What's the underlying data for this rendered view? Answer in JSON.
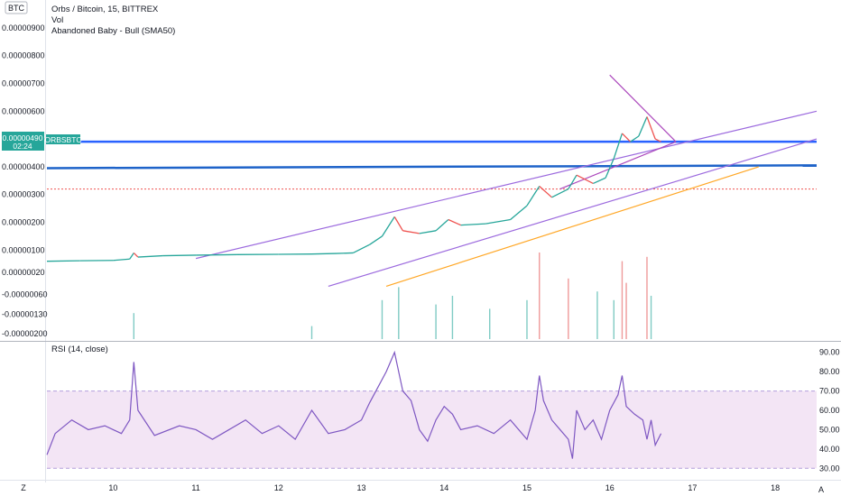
{
  "chart_data": [
    {
      "type": "candlestick",
      "title": "Orbs / Bitcoin, 15, BITTREX",
      "currency_badge": "BTC",
      "legend": [
        "Vol",
        "Abandoned Baby - Bull (SMA50)"
      ],
      "y_tick_labels": [
        "0.00000900",
        "0.00000800",
        "0.00000700",
        "0.00000600",
        "0.00000500",
        "0.00000400",
        "0.00000300",
        "0.00000200",
        "0.00000100",
        "0.00000020",
        "-0.00000060",
        "-0.00000130",
        "-0.00000200"
      ],
      "y_tick_values": [
        9e-06,
        8e-06,
        7e-06,
        6e-06,
        5e-06,
        4e-06,
        3e-06,
        2e-06,
        1e-06,
        2e-07,
        -6e-07,
        -1.3e-06,
        -2e-06
      ],
      "last_price": {
        "value": "0.00000490",
        "countdown": "02:24",
        "symbol": "ORBSBTC"
      },
      "x_tick_labels": [
        "10",
        "11",
        "12",
        "13",
        "14",
        "15",
        "16",
        "17",
        "18"
      ],
      "x_tick_values": [
        10,
        11,
        12,
        13,
        14,
        15,
        16,
        17,
        18
      ],
      "xlim": [
        9.2,
        18.5
      ],
      "ylim": [
        -2.2e-06,
        1e-05
      ],
      "price_path": [
        [
          9.2,
          6e-07
        ],
        [
          9.6,
          6.2e-07
        ],
        [
          10.0,
          6.3e-07
        ],
        [
          10.2,
          6.8e-07
        ],
        [
          10.25,
          9e-07
        ],
        [
          10.3,
          7.5e-07
        ],
        [
          10.6,
          8e-07
        ],
        [
          11.0,
          8.2e-07
        ],
        [
          11.5,
          8.4e-07
        ],
        [
          12.0,
          8.5e-07
        ],
        [
          12.4,
          8.6e-07
        ],
        [
          12.7,
          8.8e-07
        ],
        [
          12.9,
          9e-07
        ],
        [
          13.1,
          1.2e-06
        ],
        [
          13.25,
          1.5e-06
        ],
        [
          13.4,
          2.2e-06
        ],
        [
          13.5,
          1.7e-06
        ],
        [
          13.7,
          1.6e-06
        ],
        [
          13.9,
          1.7e-06
        ],
        [
          14.05,
          2.1e-06
        ],
        [
          14.2,
          1.9e-06
        ],
        [
          14.5,
          1.95e-06
        ],
        [
          14.8,
          2.1e-06
        ],
        [
          15.0,
          2.6e-06
        ],
        [
          15.15,
          3.3e-06
        ],
        [
          15.3,
          2.9e-06
        ],
        [
          15.5,
          3.2e-06
        ],
        [
          15.6,
          3.7e-06
        ],
        [
          15.8,
          3.4e-06
        ],
        [
          15.95,
          3.6e-06
        ],
        [
          16.05,
          4.3e-06
        ],
        [
          16.15,
          5.2e-06
        ],
        [
          16.25,
          4.9e-06
        ],
        [
          16.35,
          5.1e-06
        ],
        [
          16.45,
          5.8e-06
        ],
        [
          16.55,
          5e-06
        ],
        [
          16.62,
          4.9e-06
        ]
      ],
      "volume_bars": [
        [
          10.25,
          0.3
        ],
        [
          12.4,
          0.15
        ],
        [
          13.25,
          0.45
        ],
        [
          13.45,
          0.6
        ],
        [
          13.9,
          0.4
        ],
        [
          14.1,
          0.5
        ],
        [
          14.55,
          0.35
        ],
        [
          15.0,
          0.45
        ],
        [
          15.15,
          1.0
        ],
        [
          15.5,
          0.7
        ],
        [
          15.85,
          0.55
        ],
        [
          16.05,
          0.45
        ],
        [
          16.15,
          0.9
        ],
        [
          16.2,
          0.65
        ],
        [
          16.45,
          0.95
        ],
        [
          16.5,
          0.5
        ]
      ],
      "drawings": [
        {
          "name": "resistance-line-1",
          "color": "#2962ff",
          "points": [
            [
              9.2,
              4.9e-06
            ],
            [
              18.5,
              4.9e-06
            ]
          ]
        },
        {
          "name": "resistance-line-2",
          "color": "#1e63c9",
          "points": [
            [
              9.2,
              3.95e-06
            ],
            [
              18.5,
              4.05e-06
            ]
          ]
        },
        {
          "name": "dotted-level",
          "color": "#ef5350",
          "points": [
            [
              9.2,
              3.2e-06
            ],
            [
              18.5,
              3.2e-06
            ]
          ]
        },
        {
          "name": "channel-upper",
          "color": "#9c6ade",
          "points": [
            [
              11.0,
              7e-07
            ],
            [
              18.5,
              6e-06
            ]
          ]
        },
        {
          "name": "channel-lower",
          "color": "#9c6ade",
          "points": [
            [
              12.6,
              -3e-07
            ],
            [
              18.5,
              5e-06
            ]
          ]
        },
        {
          "name": "support-orange",
          "color": "#ffa726",
          "points": [
            [
              13.3,
              -3e-07
            ],
            [
              17.8,
              4e-06
            ]
          ]
        },
        {
          "name": "triangle-upper",
          "color": "#ab47bc",
          "points": [
            [
              16.0,
              7.3e-06
            ],
            [
              16.8,
              4.9e-06
            ]
          ]
        },
        {
          "name": "triangle-lower",
          "color": "#ab47bc",
          "points": [
            [
              15.4,
              3.2e-06
            ],
            [
              16.8,
              4.9e-06
            ]
          ]
        }
      ]
    },
    {
      "type": "line",
      "title": "RSI (14, close)",
      "y_tick_labels": [
        "90.00",
        "80.00",
        "70.00",
        "60.00",
        "50.00",
        "40.00",
        "30.00"
      ],
      "y_tick_values": [
        90,
        80,
        70,
        60,
        50,
        40,
        30
      ],
      "ylim": [
        25,
        95
      ],
      "band": [
        30,
        70
      ],
      "series": [
        {
          "values": [
            [
              9.2,
              37
            ],
            [
              9.3,
              48
            ],
            [
              9.5,
              55
            ],
            [
              9.7,
              50
            ],
            [
              9.9,
              52
            ],
            [
              10.1,
              48
            ],
            [
              10.2,
              55
            ],
            [
              10.25,
              85
            ],
            [
              10.3,
              60
            ],
            [
              10.5,
              47
            ],
            [
              10.8,
              52
            ],
            [
              11.0,
              50
            ],
            [
              11.2,
              45
            ],
            [
              11.4,
              50
            ],
            [
              11.6,
              55
            ],
            [
              11.8,
              48
            ],
            [
              12.0,
              52
            ],
            [
              12.2,
              45
            ],
            [
              12.4,
              60
            ],
            [
              12.6,
              48
            ],
            [
              12.8,
              50
            ],
            [
              13.0,
              55
            ],
            [
              13.1,
              64
            ],
            [
              13.2,
              72
            ],
            [
              13.3,
              80
            ],
            [
              13.4,
              90
            ],
            [
              13.5,
              70
            ],
            [
              13.6,
              65
            ],
            [
              13.7,
              50
            ],
            [
              13.8,
              44
            ],
            [
              13.9,
              55
            ],
            [
              14.0,
              62
            ],
            [
              14.1,
              58
            ],
            [
              14.2,
              50
            ],
            [
              14.4,
              52
            ],
            [
              14.6,
              48
            ],
            [
              14.8,
              55
            ],
            [
              15.0,
              45
            ],
            [
              15.1,
              60
            ],
            [
              15.15,
              78
            ],
            [
              15.2,
              65
            ],
            [
              15.3,
              55
            ],
            [
              15.4,
              50
            ],
            [
              15.5,
              45
            ],
            [
              15.55,
              35
            ],
            [
              15.6,
              60
            ],
            [
              15.7,
              50
            ],
            [
              15.8,
              55
            ],
            [
              15.9,
              45
            ],
            [
              16.0,
              60
            ],
            [
              16.1,
              68
            ],
            [
              16.15,
              78
            ],
            [
              16.2,
              62
            ],
            [
              16.3,
              58
            ],
            [
              16.4,
              55
            ],
            [
              16.45,
              45
            ],
            [
              16.5,
              55
            ],
            [
              16.55,
              42
            ],
            [
              16.62,
              48
            ]
          ]
        }
      ]
    }
  ],
  "bottom_bar": {
    "left_button": "Z",
    "right_button": "A"
  }
}
